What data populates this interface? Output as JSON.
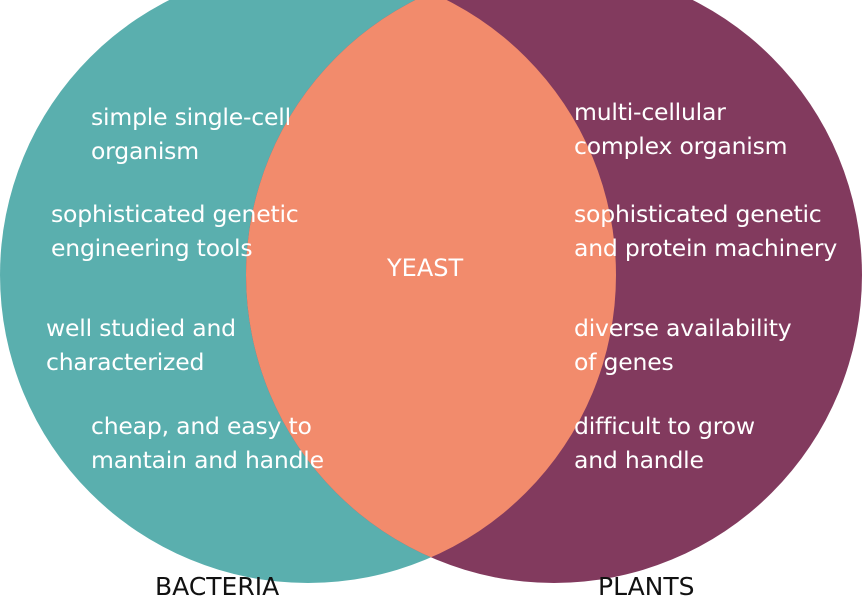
{
  "colors": {
    "bacteria": "#5aafae",
    "plants": "#823a5e",
    "overlap": "#f28b6c"
  },
  "venn": {
    "left_set": {
      "label": "BACTERIA",
      "items": [
        {
          "line1": "simple single-cell",
          "line2": "organism"
        },
        {
          "line1": "sophisticated genetic",
          "line2": "engineering tools"
        },
        {
          "line1": "well studied and",
          "line2": "characterized"
        },
        {
          "line1": "cheap, and easy to",
          "line2": "mantain and handle"
        }
      ]
    },
    "right_set": {
      "label": "PLANTS",
      "items": [
        {
          "line1": "multi-cellular",
          "line2": "complex organism"
        },
        {
          "line1": "sophisticated genetic",
          "line2": "and protein machinery"
        },
        {
          "line1": "diverse availability",
          "line2": "of genes"
        },
        {
          "line1": "difficult to grow",
          "line2": "and handle"
        }
      ]
    },
    "intersection": {
      "label": "YEAST"
    }
  }
}
